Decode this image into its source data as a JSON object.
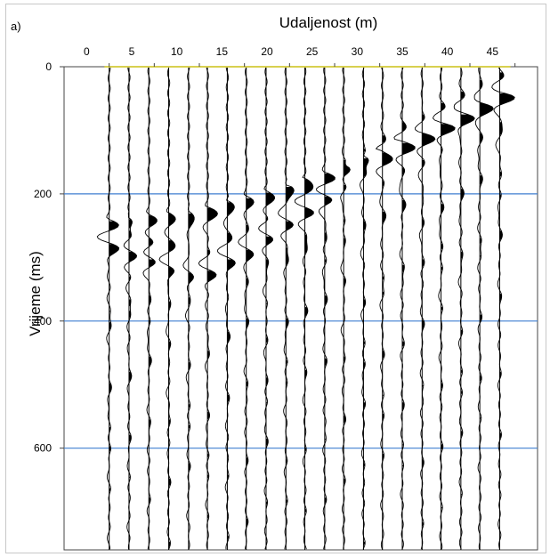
{
  "panel_label": "a)",
  "chart_data": {
    "type": "seismogram",
    "title": "",
    "xlabel": "Udaljenost (m)",
    "ylabel": "Vrijeme (ms)",
    "x_ticks": [
      0,
      5,
      10,
      15,
      20,
      25,
      30,
      35,
      40,
      45
    ],
    "y_ticks": [
      0,
      200,
      400,
      600
    ],
    "xlim": [
      -2.5,
      50
    ],
    "ylim": [
      0,
      760
    ],
    "x_axis_position": "top",
    "y_axis_inverted": true,
    "gridlines_y": [
      200,
      400,
      600
    ],
    "gridline_color": "#3f7fd0",
    "axis_line_color": "#d8d050",
    "trace_color": "#000000",
    "fill": "positive lobes filled black",
    "trace_offsets_m": [
      2.5,
      4.7,
      6.9,
      9.1,
      11.3,
      13.4,
      15.6,
      17.7,
      19.9,
      22.1,
      24.2,
      26.4,
      28.5,
      30.7,
      32.8,
      35.0,
      37.2,
      39.3,
      41.5,
      43.6,
      45.8
    ],
    "first_arrival_ms": [
      240,
      236,
      231,
      229,
      226,
      220,
      212,
      203,
      194,
      186,
      176,
      166,
      156,
      141,
      130,
      115,
      103,
      87,
      72,
      56,
      40
    ],
    "second_arrival_ms": [
      275,
      290,
      300,
      312,
      322,
      318,
      300,
      285,
      262,
      242,
      222,
      200,
      182,
      162,
      142,
      122,
      104,
      88,
      72,
      56,
      40
    ]
  }
}
